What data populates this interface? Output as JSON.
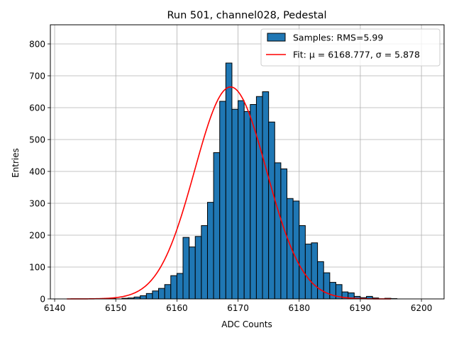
{
  "chart_data": {
    "type": "bar",
    "title": "Run 501, channel028, Pedestal",
    "xlabel": "ADC Counts",
    "ylabel": "Entries",
    "xlim": [
      6139.3,
      6203.7
    ],
    "ylim": [
      0,
      860
    ],
    "x_ticks": [
      6140,
      6150,
      6160,
      6170,
      6180,
      6190,
      6200
    ],
    "y_ticks": [
      0,
      100,
      200,
      300,
      400,
      500,
      600,
      700,
      800
    ],
    "grid": true,
    "legend_position": "top-right",
    "histogram": {
      "name": "Samples: RMS=5.99",
      "color": "#1f77b4",
      "bin_start": 6142,
      "bin_width": 1,
      "counts": [
        0,
        0,
        0,
        0,
        0,
        1,
        1,
        1,
        0,
        2,
        3,
        6,
        10,
        17,
        25,
        33,
        45,
        73,
        80,
        193,
        163,
        196,
        230,
        303,
        459,
        620,
        740,
        595,
        622,
        588,
        610,
        635,
        650,
        555,
        427,
        408,
        315,
        307,
        230,
        172,
        176,
        117,
        82,
        52,
        45,
        22,
        19,
        8,
        4,
        8,
        3,
        0,
        2,
        1
      ]
    },
    "fit": {
      "name": "Fit: μ = 6168.777, σ = 5.878",
      "color": "#ff0000",
      "mu": 6168.777,
      "sigma": 5.878,
      "amplitude": 665,
      "x_range": [
        6142,
        6195
      ]
    }
  }
}
